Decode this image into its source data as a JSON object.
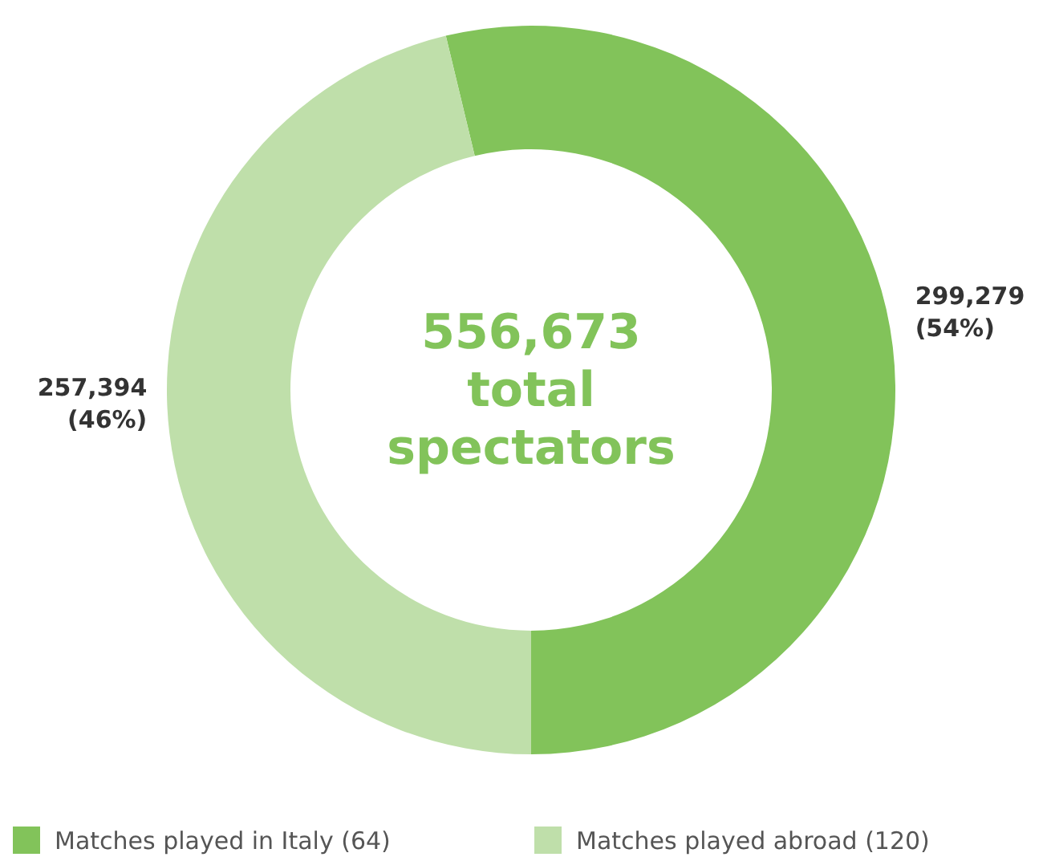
{
  "chart_data": {
    "type": "donut",
    "categories": [
      "Matches played in Italy (64)",
      "Matches played abroad (120)"
    ],
    "values": [
      299279,
      257394
    ],
    "colors": [
      "#82c35a",
      "#bfdfaa"
    ],
    "value_labels": [
      "299,279 (54%)",
      "257,394 (46%)"
    ],
    "annotations": [
      "556,673 total spectators"
    ],
    "legend": "bottom"
  }
}
